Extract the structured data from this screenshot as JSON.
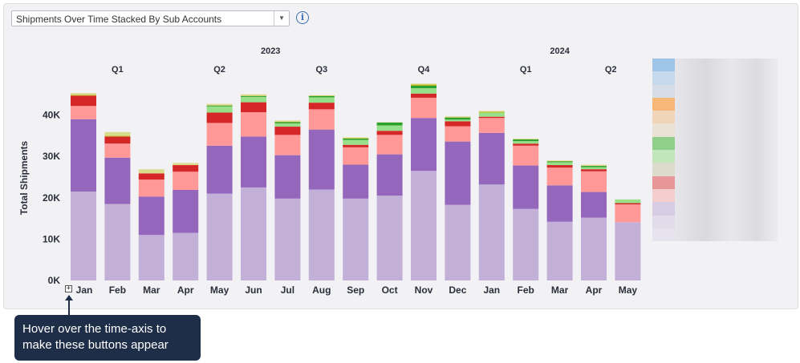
{
  "selector": {
    "value": "Shipments Over Time Stacked By Sub Accounts",
    "arrow_icon": "chevron-down-icon"
  },
  "info_icon": {
    "glyph": "i"
  },
  "tooltip": {
    "line1": "Hover over the time-axis to",
    "line2": "make these buttons appear"
  },
  "expand_icon": {
    "glyph": "+"
  },
  "chart_data": {
    "type": "bar",
    "stacked": true,
    "ylabel": "Total Shipments",
    "ylim": [
      0,
      50000
    ],
    "y_ticks": [
      0,
      10000,
      20000,
      30000,
      40000
    ],
    "y_tick_labels": [
      "0K",
      "10K",
      "20K",
      "30K",
      "40K"
    ],
    "categories": [
      "Jan",
      "Feb",
      "Mar",
      "Apr",
      "May",
      "Jun",
      "Jul",
      "Aug",
      "Sep",
      "Oct",
      "Nov",
      "Dec",
      "Jan",
      "Feb",
      "Mar",
      "Apr",
      "May"
    ],
    "year_labels": [
      {
        "label": "2023",
        "from": 0,
        "to": 11
      },
      {
        "label": "2024",
        "from": 12,
        "to": 16
      }
    ],
    "quarter_labels": [
      {
        "label": "Q1",
        "from": 0,
        "to": 2
      },
      {
        "label": "Q2",
        "from": 3,
        "to": 5
      },
      {
        "label": "Q3",
        "from": 6,
        "to": 8
      },
      {
        "label": "Q4",
        "from": 9,
        "to": 11
      },
      {
        "label": "Q1",
        "from": 12,
        "to": 14
      },
      {
        "label": "Q2",
        "from": 15,
        "to": 16
      }
    ],
    "series": [
      {
        "color": "#c3b0d8",
        "values": [
          21500,
          18500,
          11000,
          11500,
          21000,
          22500,
          19800,
          22000,
          19800,
          20500,
          26500,
          18300,
          23200,
          17300,
          14200,
          15200,
          14100
        ]
      },
      {
        "color": "#9467bd",
        "values": [
          17500,
          11200,
          9300,
          10400,
          11600,
          12300,
          10500,
          14500,
          8200,
          10000,
          12800,
          15300,
          12500,
          10500,
          8800,
          6200,
          0
        ]
      },
      {
        "color": "#ff9896",
        "values": [
          3200,
          3400,
          4100,
          4400,
          5500,
          5900,
          4900,
          4900,
          4200,
          4700,
          4900,
          3700,
          3600,
          4800,
          4300,
          5000,
          4300
        ]
      },
      {
        "color": "#d62728",
        "values": [
          2500,
          1700,
          1500,
          1600,
          2500,
          2400,
          2000,
          1600,
          600,
          1000,
          1000,
          1200,
          300,
          500,
          600,
          500,
          300
        ]
      },
      {
        "color": "#98df8a",
        "values": [
          0,
          0,
          0,
          0,
          1500,
          1300,
          800,
          1300,
          1200,
          1300,
          1300,
          400,
          1000,
          600,
          700,
          500,
          900
        ]
      },
      {
        "color": "#2ca02c",
        "values": [
          0,
          0,
          0,
          0,
          200,
          200,
          300,
          300,
          300,
          700,
          600,
          500,
          0,
          400,
          200,
          300,
          0
        ]
      },
      {
        "color": "#bcbd22",
        "values": [
          200,
          200,
          0,
          0,
          100,
          100,
          100,
          100,
          100,
          0,
          300,
          100,
          200,
          0,
          100,
          0,
          0
        ]
      },
      {
        "color": "#dbdb8d",
        "values": [
          400,
          900,
          1000,
          500,
          300,
          300,
          300,
          100,
          200,
          100,
          200,
          200,
          200,
          200,
          100,
          300,
          0
        ]
      }
    ],
    "legend_swatches": [
      "#9ec5e8",
      "#c5d8ec",
      "#d6dde6",
      "#f7b877",
      "#f0d5b8",
      "#ebe2d6",
      "#8fcf8a",
      "#c2e6bb",
      "#dcdccd",
      "#e89799",
      "#f4cdcd",
      "#d8cce2",
      "#e2dcea",
      "#e6e3ee"
    ]
  }
}
